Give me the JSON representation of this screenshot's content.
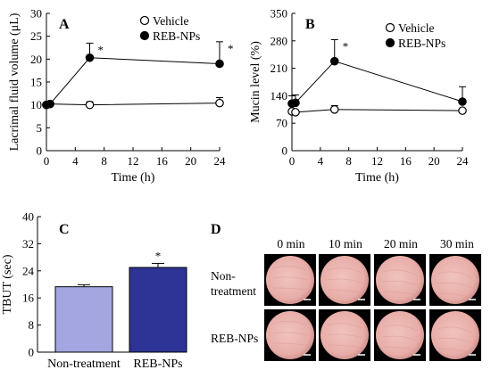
{
  "chart_data": [
    {
      "panel": "A",
      "type": "line",
      "xlabel": "Time (h)",
      "ylabel": "Lacrimal fluid volume (μL)",
      "xlim": [
        0,
        24
      ],
      "ylim": [
        0,
        30
      ],
      "xticks": [
        0,
        4,
        8,
        12,
        16,
        20,
        24
      ],
      "yticks": [
        0,
        5,
        10,
        15,
        20,
        25,
        30
      ],
      "legend_position": "top-right",
      "series": [
        {
          "name": "Vehicle",
          "marker": "open-circle",
          "x": [
            0,
            0.5,
            6,
            24
          ],
          "y": [
            10.0,
            10.2,
            10.0,
            10.4
          ],
          "err": [
            0.4,
            0.5,
            0.7,
            1.2
          ]
        },
        {
          "name": "REB-NPs",
          "marker": "filled-circle",
          "x": [
            0,
            0.5,
            6,
            24
          ],
          "y": [
            10.0,
            10.2,
            20.3,
            19.0
          ],
          "err": [
            0.4,
            0.5,
            3.2,
            4.8
          ]
        }
      ],
      "significance": [
        {
          "x": 6,
          "label": "*"
        },
        {
          "x": 24,
          "label": "*"
        }
      ]
    },
    {
      "panel": "B",
      "type": "line",
      "xlabel": "Time (h)",
      "ylabel": "Mucin level (%)",
      "xlim": [
        0,
        24
      ],
      "ylim": [
        0,
        350
      ],
      "xticks": [
        0,
        4,
        8,
        12,
        16,
        20,
        24
      ],
      "yticks": [
        0,
        70,
        140,
        210,
        280,
        350
      ],
      "legend_position": "top-right",
      "series": [
        {
          "name": "Vehicle",
          "marker": "open-circle",
          "x": [
            0,
            0.5,
            6,
            24
          ],
          "y": [
            100,
            98,
            105,
            102
          ],
          "err": [
            5,
            5,
            10,
            5
          ]
        },
        {
          "name": "REB-NPs",
          "marker": "filled-circle",
          "x": [
            0,
            0.5,
            6,
            24
          ],
          "y": [
            120,
            122,
            228,
            125
          ],
          "err": [
            20,
            20,
            55,
            38
          ]
        }
      ],
      "significance": [
        {
          "x": 6,
          "label": "*"
        }
      ]
    },
    {
      "panel": "C",
      "type": "bar",
      "ylabel": "TBUT (sec)",
      "ylim": [
        0,
        40
      ],
      "yticks": [
        0,
        8,
        16,
        24,
        32,
        40
      ],
      "categories": [
        "Non-treatment",
        "REB-NPs"
      ],
      "values": [
        19.3,
        25.0
      ],
      "err": [
        0.6,
        1.2
      ],
      "colors": [
        "#a3a6e0",
        "#2e3396"
      ],
      "significance": [
        {
          "category": "REB-NPs",
          "label": "*"
        }
      ]
    }
  ],
  "panel_d": {
    "label": "D",
    "columns": [
      "0 min",
      "10 min",
      "20 min",
      "30 min"
    ],
    "rows": [
      "Non-\ntreatment",
      "REB-NPs"
    ],
    "row_line1": "Non-",
    "row_line2": "treatment",
    "row2_label": "REB-NPs"
  },
  "colors": {
    "frame": "#000000",
    "dish": "#e8ada8",
    "dish_edge": "#c98a85"
  }
}
